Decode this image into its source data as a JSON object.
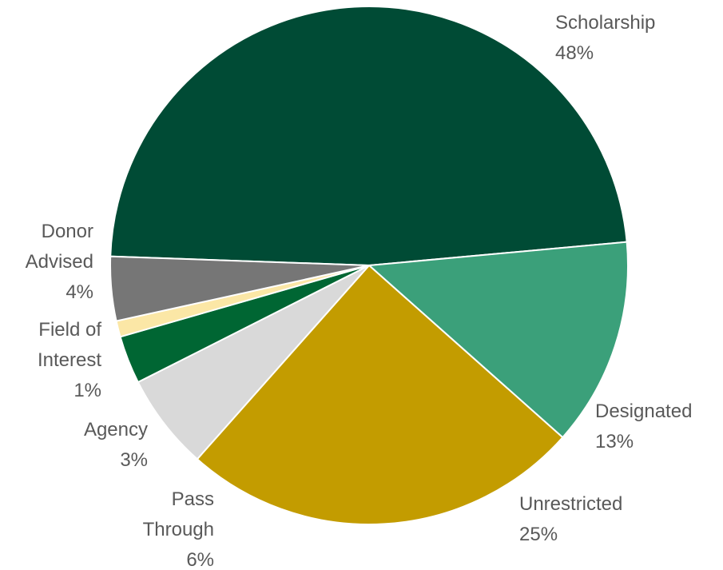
{
  "chart_data": {
    "type": "pie",
    "title": "",
    "slices": [
      {
        "name": "Scholarship",
        "value": 48,
        "label": "48%",
        "color": "#004b35"
      },
      {
        "name": "Designated",
        "value": 13,
        "label": "13%",
        "color": "#3ba07a"
      },
      {
        "name": "Unrestricted",
        "value": 25,
        "label": "25%",
        "color": "#c39c00"
      },
      {
        "name": "Pass Through",
        "value": 6,
        "label": "6%",
        "color": "#d9d9d9"
      },
      {
        "name": "Agency",
        "value": 3,
        "label": "3%",
        "color": "#006633"
      },
      {
        "name": "Field of Interest",
        "value": 1,
        "label": "1%",
        "color": "#fbe7a6"
      },
      {
        "name": "Donor Advised",
        "value": 4,
        "label": "4%",
        "color": "#767676"
      }
    ],
    "legend": "none (labels outside slices)"
  }
}
